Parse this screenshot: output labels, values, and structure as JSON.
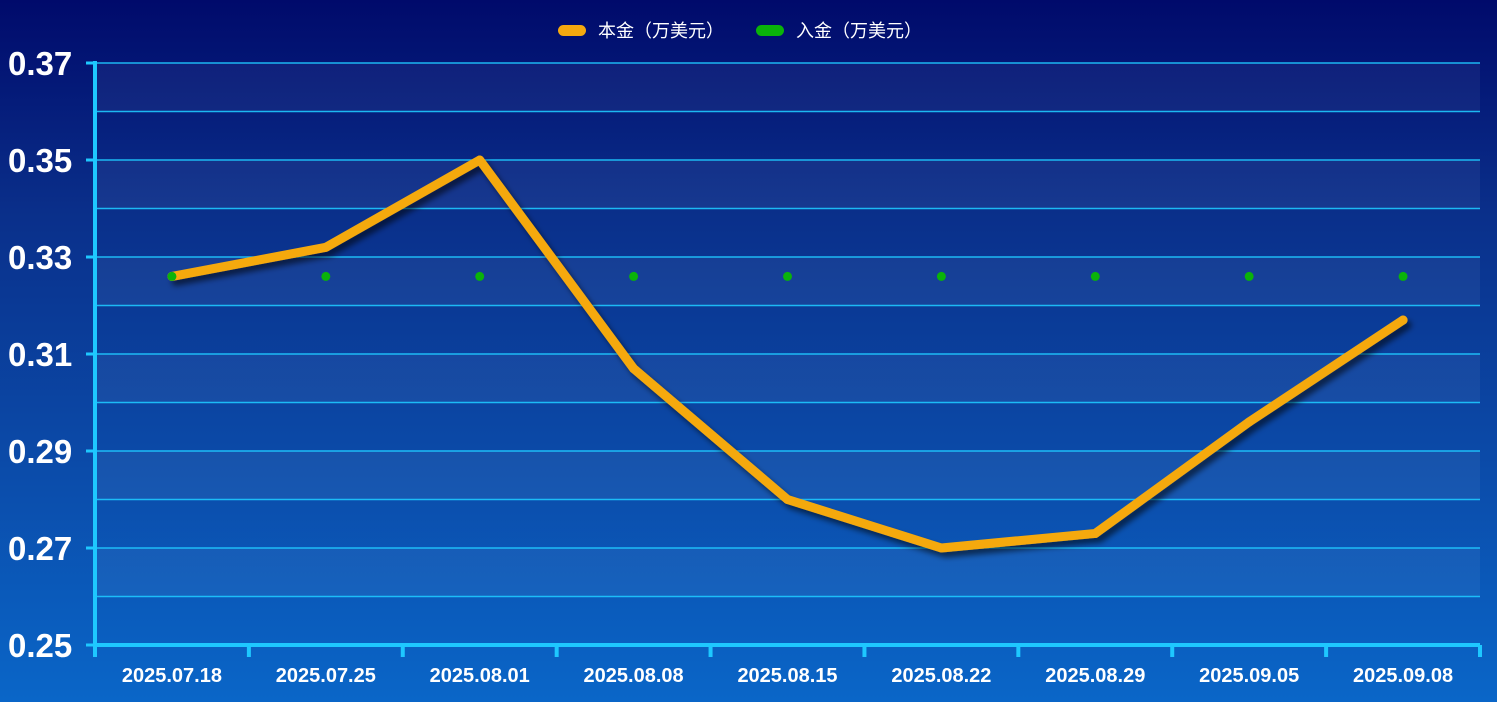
{
  "chart_data": {
    "type": "line",
    "categories": [
      "2025.07.18",
      "2025.07.25",
      "2025.08.01",
      "2025.08.08",
      "2025.08.15",
      "2025.08.22",
      "2025.08.29",
      "2025.09.05",
      "2025.09.08"
    ],
    "series": [
      {
        "name": "本金（万美元）",
        "color": "#f5a90f",
        "values": [
          0.326,
          0.332,
          0.35,
          0.307,
          0.28,
          0.27,
          0.273,
          0.296,
          0.317
        ]
      },
      {
        "name": "入金（万美元）",
        "color": "#0ab30a",
        "values": [
          0.326,
          0.326,
          0.326,
          0.326,
          0.326,
          0.326,
          0.326,
          0.326,
          0.326
        ]
      }
    ],
    "yticks": [
      "0.37",
      "0.35",
      "0.33",
      "0.31",
      "0.29",
      "0.27",
      "0.25"
    ],
    "ylim": [
      0.25,
      0.37
    ],
    "grid": true,
    "legend_position": "top-center",
    "axis_color": "#1ec8ff"
  }
}
